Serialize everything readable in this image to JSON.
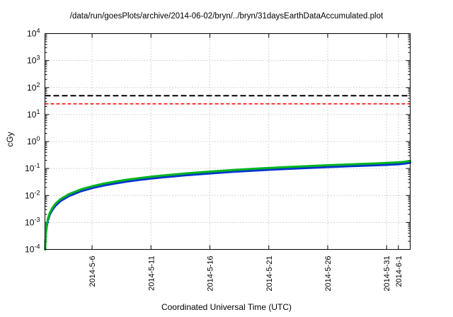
{
  "chart_data": {
    "type": "line",
    "title": "/data/run/goesPlots/archive/2014-06-02/bryn/../bryn/31daysEarthDataAccumulated.plot",
    "xlabel": "Coordinated Universal Time (UTC)",
    "ylabel": "cGy",
    "y_scale": "log",
    "ylim": [
      0.0001,
      10000
    ],
    "y_tick_exponents": [
      4,
      3,
      2,
      1,
      0,
      -1,
      -2,
      -3,
      -4
    ],
    "x_range_days": [
      0,
      31
    ],
    "x_ticks": [
      {
        "day": 4,
        "label": "2014-5-6"
      },
      {
        "day": 9,
        "label": "2014-5-11"
      },
      {
        "day": 14,
        "label": "2014-5-16"
      },
      {
        "day": 19,
        "label": "2014-5-21"
      },
      {
        "day": 24,
        "label": "2014-5-26"
      },
      {
        "day": 29,
        "label": "2014-5-31"
      },
      {
        "day": 30,
        "label": "2014-6-1"
      }
    ],
    "grid": true,
    "legend": "none",
    "colors": {
      "grid": "#a8a8a8",
      "axis": "#000000",
      "background": "#ffffff"
    },
    "threshold_lines": [
      {
        "name": "black-limit-line",
        "value": 50,
        "color": "#000000",
        "dash": "8,4",
        "width": 2
      },
      {
        "name": "red-limit-line",
        "value": 25,
        "color": "#ff0000",
        "dash": "5,3",
        "width": 1.5
      }
    ],
    "series": [
      {
        "name": "accumulated-dose-blue",
        "color": "#0032d2",
        "width": 3,
        "points": [
          [
            0.021,
            0.0001
          ],
          [
            0.04,
            0.00019
          ],
          [
            0.07,
            0.00033
          ],
          [
            0.1,
            0.00047
          ],
          [
            0.15,
            0.0007
          ],
          [
            0.25,
            0.0012
          ],
          [
            0.4,
            0.0019
          ],
          [
            0.6,
            0.0028
          ],
          [
            0.9,
            0.0042
          ],
          [
            1.3,
            0.0061
          ],
          [
            2,
            0.0094
          ],
          [
            3,
            0.0141
          ],
          [
            4,
            0.0188
          ],
          [
            5,
            0.0235
          ],
          [
            6,
            0.0282
          ],
          [
            7,
            0.0329
          ],
          [
            8,
            0.0376
          ],
          [
            9,
            0.0423
          ],
          [
            10,
            0.047
          ],
          [
            12,
            0.0564
          ],
          [
            14,
            0.0658
          ],
          [
            16,
            0.0752
          ],
          [
            18,
            0.0846
          ],
          [
            20,
            0.094
          ],
          [
            22,
            0.1034
          ],
          [
            24,
            0.1128
          ],
          [
            26,
            0.1222
          ],
          [
            28,
            0.1316
          ],
          [
            29,
            0.1363
          ],
          [
            30,
            0.1435
          ],
          [
            30.5,
            0.151
          ],
          [
            31,
            0.163
          ]
        ]
      },
      {
        "name": "accumulated-dose-green",
        "color": "#00b41e",
        "width": 3,
        "points": [
          [
            0.018,
            0.0001
          ],
          [
            0.04,
            0.00022
          ],
          [
            0.07,
            0.00039
          ],
          [
            0.1,
            0.00055
          ],
          [
            0.15,
            0.00083
          ],
          [
            0.25,
            0.0014
          ],
          [
            0.4,
            0.0022
          ],
          [
            0.6,
            0.0033
          ],
          [
            0.9,
            0.005
          ],
          [
            1.3,
            0.0072
          ],
          [
            2,
            0.011
          ],
          [
            3,
            0.0165
          ],
          [
            4,
            0.022
          ],
          [
            5,
            0.0275
          ],
          [
            6,
            0.033
          ],
          [
            7,
            0.0385
          ],
          [
            8,
            0.044
          ],
          [
            9,
            0.0495
          ],
          [
            10,
            0.055
          ],
          [
            12,
            0.066
          ],
          [
            14,
            0.077
          ],
          [
            16,
            0.088
          ],
          [
            18,
            0.099
          ],
          [
            20,
            0.11
          ],
          [
            22,
            0.121
          ],
          [
            24,
            0.132
          ],
          [
            26,
            0.143
          ],
          [
            28,
            0.154
          ],
          [
            29,
            0.16
          ],
          [
            30,
            0.169
          ],
          [
            30.5,
            0.177
          ],
          [
            31,
            0.191
          ]
        ]
      }
    ]
  }
}
